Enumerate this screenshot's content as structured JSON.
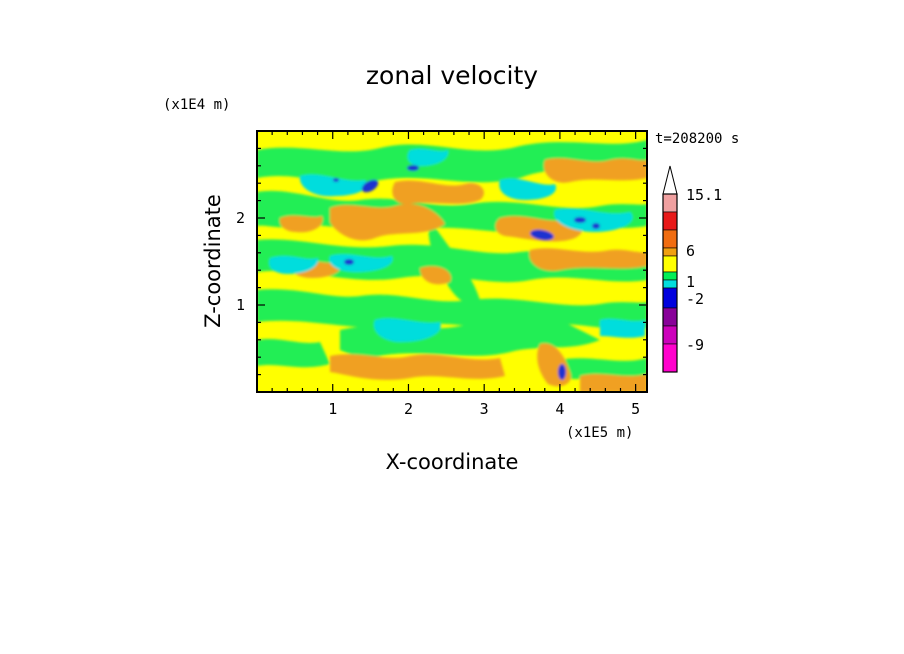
{
  "chart_data": {
    "type": "heatmap",
    "title": "zonal velocity",
    "xlabel": "X-coordinate",
    "ylabel": "Z-coordinate",
    "x_unit": "(x1E5 m)",
    "y_unit": "(x1E4 m)",
    "time_label": "t=208200 s",
    "xlim": [
      0,
      5.15
    ],
    "ylim": [
      0,
      3.0
    ],
    "x_ticks": [
      1,
      2,
      3,
      4,
      5
    ],
    "y_ticks": [
      1,
      2
    ],
    "colorbar": {
      "labels": [
        "15.1",
        "6",
        "1",
        "-2",
        "-9"
      ],
      "colors": [
        "#f0a0a0",
        "#e81818",
        "#f06c10",
        "#f0a010",
        "#ffff00",
        "#00ee55",
        "#00dddd",
        "#0000dd",
        "#880099",
        "#cc00bb",
        "#ff00cc"
      ],
      "arrow_color": "#ffffff"
    },
    "field_colors": {
      "base": "#ffff00",
      "green": "#22ee55",
      "cyan": "#00dddd",
      "orange": "#f0a020",
      "blue": "#1a30d0"
    }
  }
}
